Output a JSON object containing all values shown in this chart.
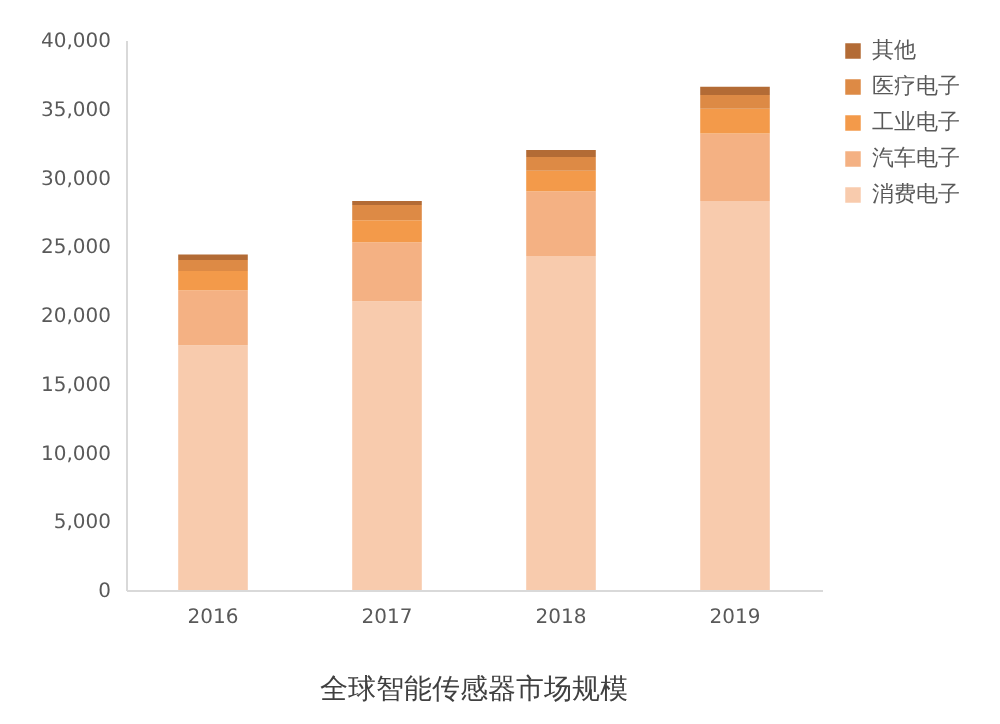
{
  "chart_data": {
    "type": "bar",
    "title": "全球智能传感器市场规模",
    "categories": [
      "2016",
      "2017",
      "2018",
      "2019"
    ],
    "stacked": true,
    "series": [
      {
        "name": "消费电子",
        "color": "#f8cbad",
        "values": [
          17800,
          21000,
          24300,
          28300
        ]
      },
      {
        "name": "汽车电子",
        "color": "#f4b183",
        "values": [
          4000,
          4300,
          4700,
          4900
        ]
      },
      {
        "name": "工业电子",
        "color": "#f39a4a",
        "values": [
          1400,
          1600,
          1500,
          1800
        ]
      },
      {
        "name": "医疗电子",
        "color": "#dd8a45",
        "values": [
          800,
          1100,
          1000,
          1000
        ]
      },
      {
        "name": "其他",
        "color": "#b36b35",
        "values": [
          400,
          300,
          500,
          600
        ]
      }
    ],
    "ylim": [
      0,
      40000
    ],
    "yticks": [
      0,
      {
        "value": 5000,
        "label": "5,000"
      },
      {
        "value": 10000,
        "label": "10,000"
      },
      {
        "value": 15000,
        "label": "15,000"
      },
      {
        "value": 20000,
        "label": "20,000"
      },
      {
        "value": 25000,
        "label": "25,000"
      },
      {
        "value": 30000,
        "label": "30,000"
      },
      {
        "value": 35000,
        "label": "35,000"
      },
      {
        "value": 40000,
        "label": "40,000"
      }
    ],
    "grid": false,
    "legend": "right"
  }
}
